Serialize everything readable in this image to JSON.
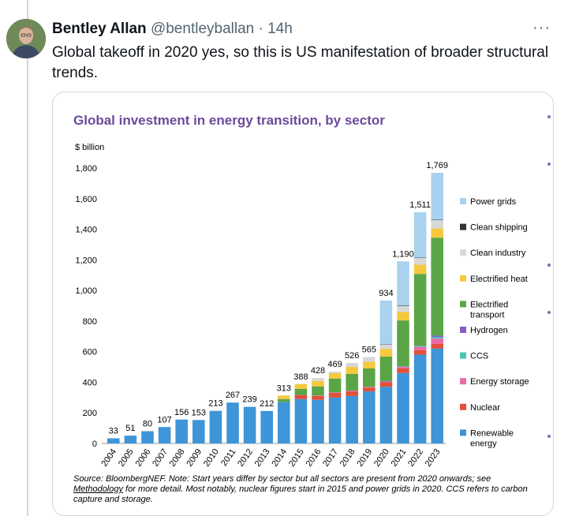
{
  "tweet": {
    "name": "Bentley Allan",
    "handle": "@bentleyballan",
    "separator": "·",
    "time": "14h",
    "more": "···",
    "text": "Global takeoff in 2020 yes, so this is US manifestation of broader structural trends."
  },
  "source": {
    "part1": "Source: BloombergNEF. Note: Start years differ by sector but all sectors are present from 2020 onwards; see ",
    "link": "Methodology",
    "part2": " for more detail. Most notably, nuclear figures start in 2015 and power grids in 2020. CCS refers to carbon capture and storage."
  },
  "chart_data": {
    "type": "bar",
    "stacked": true,
    "title": "Global investment in energy transition, by sector",
    "ylabel": "$ billion",
    "ylim": [
      0,
      1800
    ],
    "yticks": [
      0,
      200,
      400,
      600,
      800,
      1000,
      1200,
      1400,
      1600,
      1800
    ],
    "ytick_labels": [
      "0",
      "200",
      "400",
      "600",
      "800",
      "1,000",
      "1,200",
      "1,400",
      "1,600",
      "1,800"
    ],
    "categories": [
      "2004",
      "2005",
      "2006",
      "2007",
      "2008",
      "2009",
      "2010",
      "2011",
      "2012",
      "2013",
      "2014",
      "2015",
      "2016",
      "2017",
      "2018",
      "2019",
      "2020",
      "2021",
      "2022",
      "2023"
    ],
    "totals": [
      33,
      51,
      80,
      107,
      156,
      153,
      213,
      267,
      239,
      212,
      313,
      388,
      428,
      469,
      526,
      565,
      934,
      1190,
      1511,
      1769
    ],
    "total_labels": [
      "33",
      "51",
      "80",
      "107",
      "156",
      "153",
      "213",
      "267",
      "239",
      "212",
      "313",
      "388",
      "428",
      "469",
      "526",
      "565",
      "934",
      "1,190",
      "1,511",
      "1,769"
    ],
    "legend_position": "right",
    "series": [
      {
        "name": "Renewable energy",
        "color": "#3e95d8",
        "values": [
          33,
          51,
          80,
          107,
          156,
          153,
          213,
          267,
          239,
          212,
          270,
          290,
          285,
          300,
          310,
          340,
          370,
          460,
          580,
          620
        ]
      },
      {
        "name": "Nuclear",
        "color": "#e0503a",
        "values": [
          0,
          0,
          0,
          0,
          0,
          0,
          0,
          0,
          0,
          0,
          0,
          25,
          25,
          30,
          30,
          25,
          30,
          30,
          30,
          30
        ]
      },
      {
        "name": "Energy storage",
        "color": "#ea6aa5",
        "values": [
          0,
          0,
          0,
          0,
          0,
          0,
          0,
          0,
          0,
          0,
          0,
          2,
          3,
          4,
          5,
          5,
          5,
          10,
          20,
          35
        ]
      },
      {
        "name": "CCS",
        "color": "#48c4b4",
        "values": [
          0,
          0,
          0,
          0,
          0,
          0,
          0,
          0,
          0,
          0,
          0,
          0,
          0,
          0,
          0,
          0,
          2,
          2,
          5,
          10
        ]
      },
      {
        "name": "Hydrogen",
        "color": "#8a5cc6",
        "values": [
          0,
          0,
          0,
          0,
          0,
          0,
          0,
          0,
          0,
          0,
          0,
          0,
          0,
          0,
          0,
          0,
          1,
          2,
          3,
          10
        ]
      },
      {
        "name": "Electrified transport",
        "color": "#5aa546",
        "values": [
          0,
          0,
          0,
          0,
          0,
          0,
          0,
          0,
          0,
          0,
          20,
          40,
          60,
          90,
          110,
          120,
          160,
          300,
          470,
          640
        ]
      },
      {
        "name": "Electrified heat",
        "color": "#f5c83e",
        "values": [
          0,
          0,
          0,
          0,
          0,
          0,
          0,
          0,
          0,
          0,
          23,
          31,
          35,
          35,
          45,
          45,
          50,
          55,
          60,
          60
        ]
      },
      {
        "name": "Clean industry",
        "color": "#d8d8d8",
        "values": [
          0,
          0,
          0,
          0,
          0,
          0,
          0,
          0,
          0,
          0,
          0,
          0,
          20,
          10,
          26,
          30,
          30,
          40,
          45,
          55
        ]
      },
      {
        "name": "Clean shipping",
        "color": "#333333",
        "values": [
          0,
          0,
          0,
          0,
          0,
          0,
          0,
          0,
          0,
          0,
          0,
          0,
          0,
          0,
          0,
          0,
          1,
          1,
          2,
          2
        ]
      },
      {
        "name": "Power grids",
        "color": "#a9d2ee",
        "values": [
          0,
          0,
          0,
          0,
          0,
          0,
          0,
          0,
          0,
          0,
          0,
          0,
          0,
          0,
          0,
          0,
          285,
          290,
          296,
          307
        ]
      }
    ],
    "legend_order": [
      "Power grids",
      "Clean shipping",
      "Clean industry",
      "Electrified heat",
      "Electrified transport",
      "Hydrogen",
      "CCS",
      "Energy storage",
      "Nuclear",
      "Renewable energy"
    ],
    "legend_labels": [
      [
        "Power grids"
      ],
      [
        "Clean shipping"
      ],
      [
        "Clean industry"
      ],
      [
        "Electrified heat"
      ],
      [
        "Electrified",
        "transport"
      ],
      [
        "Hydrogen"
      ],
      [
        "CCS"
      ],
      [
        "Energy storage"
      ],
      [
        "Nuclear"
      ],
      [
        "Renewable",
        "energy"
      ]
    ]
  }
}
